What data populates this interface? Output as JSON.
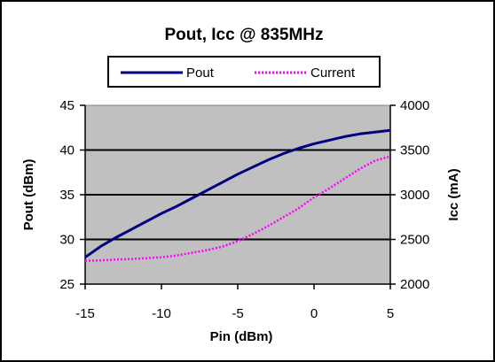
{
  "colors": {
    "plot_background": "#c0c0c0",
    "pout": "#000080",
    "current": "#ff00ff"
  },
  "chart_data": {
    "type": "line",
    "title": "Pout, Icc @ 835MHz",
    "xlabel": "Pin  (dBm)",
    "ylabel_left": "Pout (dBm)",
    "ylabel_right": "Icc (mA)",
    "xlim": [
      -15,
      5
    ],
    "ylim_left": [
      25,
      45
    ],
    "ylim_right": [
      2000,
      4000
    ],
    "x_ticks": [
      "-15",
      "-10",
      "-5",
      "0",
      "5"
    ],
    "y_ticks_left": [
      "25",
      "30",
      "35",
      "40",
      "45"
    ],
    "y_ticks_right": [
      "2000",
      "2500",
      "3000",
      "3500",
      "4000"
    ],
    "grid": "horizontal",
    "legend_position": "top",
    "series": [
      {
        "name": "Pout",
        "axis": "left",
        "style": "solid",
        "x": [
          -15,
          -14,
          -13,
          -12,
          -11,
          -10,
          -9,
          -8,
          -7,
          -6,
          -5,
          -4,
          -3,
          -2,
          -1,
          0,
          1,
          2,
          3,
          4,
          5
        ],
        "y": [
          28.0,
          29.2,
          30.2,
          31.1,
          32.0,
          32.9,
          33.7,
          34.6,
          35.5,
          36.4,
          37.3,
          38.1,
          38.9,
          39.6,
          40.2,
          40.7,
          41.1,
          41.5,
          41.8,
          42.0,
          42.2
        ]
      },
      {
        "name": "Current",
        "axis": "right",
        "style": "dotted",
        "x": [
          -15,
          -14,
          -13,
          -12,
          -11,
          -10,
          -9,
          -8,
          -7,
          -6,
          -5,
          -4,
          -3,
          -2,
          -1,
          0,
          1,
          2,
          3,
          4,
          5
        ],
        "y": [
          2260,
          2265,
          2275,
          2280,
          2290,
          2300,
          2320,
          2350,
          2380,
          2420,
          2480,
          2560,
          2650,
          2750,
          2850,
          2970,
          3070,
          3180,
          3290,
          3380,
          3430
        ]
      }
    ]
  }
}
